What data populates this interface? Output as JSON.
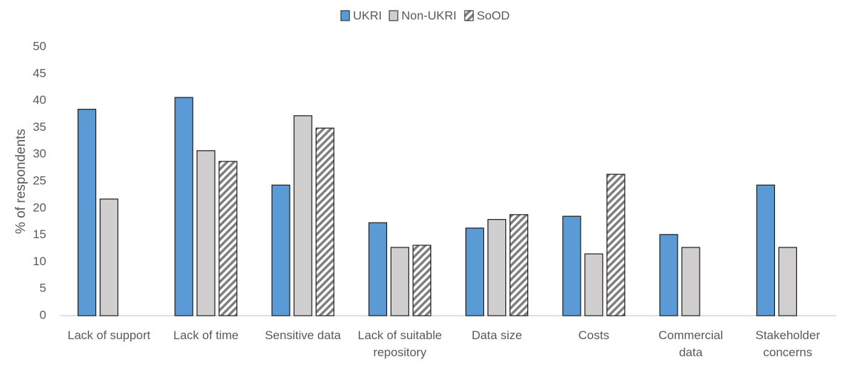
{
  "chart_data": {
    "type": "bar",
    "categories": [
      "Lack of support",
      "Lack of time",
      "Sensitive data",
      "Lack of suitable\nrepository",
      "Data size",
      "Costs",
      "Commercial\ndata",
      "Stakeholder\nconcerns"
    ],
    "series": [
      {
        "name": "UKRI",
        "color": "#5b9bd5",
        "values": [
          38.4,
          40.6,
          24.3,
          17.3,
          16.3,
          18.5,
          15.1,
          24.3
        ]
      },
      {
        "name": "Non-UKRI",
        "color": "#d0cece",
        "values": [
          21.7,
          30.7,
          37.2,
          12.7,
          17.9,
          11.5,
          12.7,
          12.7
        ]
      },
      {
        "name": "SoOD",
        "color": "#ffffff",
        "hatch": "#7f7f7f",
        "values": [
          null,
          28.7,
          34.9,
          13.1,
          18.8,
          26.3,
          null,
          null
        ]
      }
    ],
    "y_label": "% of respondents",
    "ylim": [
      0,
      50
    ],
    "yticks": [
      0,
      5,
      10,
      15,
      20,
      25,
      30,
      35,
      40,
      45,
      50
    ],
    "grid": false,
    "legend": "top"
  }
}
